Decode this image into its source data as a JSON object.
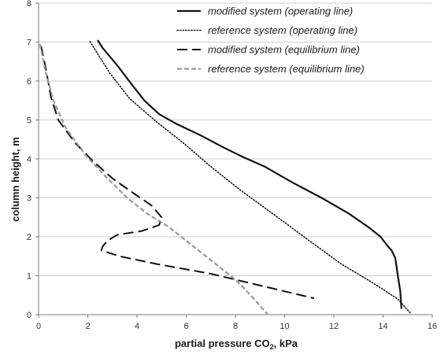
{
  "chart_data": {
    "type": "line",
    "title": "",
    "xlabel_main": "partial pressure CO",
    "xlabel_sub": "2",
    "xlabel_suffix": ", kPa",
    "ylabel": "column height, m",
    "xlim": [
      0,
      16
    ],
    "ylim": [
      0,
      8
    ],
    "xticks": [
      0,
      2,
      4,
      6,
      8,
      10,
      12,
      14,
      16
    ],
    "yticks": [
      0,
      1,
      2,
      3,
      4,
      5,
      6,
      7,
      8
    ],
    "grid": "horizontal",
    "legend_position": "top-right",
    "series": [
      {
        "name": "modified system (operating line)",
        "color": "#111111",
        "style": "solid",
        "points": [
          [
            14.75,
            0.15
          ],
          [
            14.7,
            0.6
          ],
          [
            14.6,
            1.0
          ],
          [
            14.5,
            1.45
          ],
          [
            14.35,
            1.65
          ],
          [
            14.2,
            1.75
          ],
          [
            13.9,
            2.0
          ],
          [
            13.4,
            2.25
          ],
          [
            12.6,
            2.6
          ],
          [
            11.5,
            3.0
          ],
          [
            10.3,
            3.4
          ],
          [
            9.2,
            3.8
          ],
          [
            8.3,
            4.05
          ],
          [
            7.5,
            4.3
          ],
          [
            6.6,
            4.6
          ],
          [
            5.6,
            4.9
          ],
          [
            4.9,
            5.15
          ],
          [
            4.3,
            5.5
          ],
          [
            3.8,
            5.9
          ],
          [
            3.2,
            6.4
          ],
          [
            2.6,
            6.85
          ],
          [
            2.4,
            7.05
          ]
        ]
      },
      {
        "name": "reference system (operating line)",
        "color": "#111111",
        "style": "dotted",
        "points": [
          [
            15.1,
            0.05
          ],
          [
            14.6,
            0.4
          ],
          [
            13.5,
            0.85
          ],
          [
            12.3,
            1.3
          ],
          [
            11.0,
            1.9
          ],
          [
            9.5,
            2.6
          ],
          [
            8.2,
            3.2
          ],
          [
            7.0,
            3.8
          ],
          [
            5.9,
            4.4
          ],
          [
            4.8,
            4.95
          ],
          [
            3.7,
            5.55
          ],
          [
            2.9,
            6.2
          ],
          [
            2.4,
            6.7
          ],
          [
            2.05,
            7.05
          ]
        ]
      },
      {
        "name": "modified system (equilibrium line)",
        "color": "#111111",
        "style": "dashed",
        "points": [
          [
            0.1,
            6.9
          ],
          [
            0.3,
            6.3
          ],
          [
            0.5,
            5.6
          ],
          [
            0.8,
            5.0
          ],
          [
            1.5,
            4.4
          ],
          [
            2.2,
            3.95
          ],
          [
            3.0,
            3.5
          ],
          [
            3.9,
            3.1
          ],
          [
            4.6,
            2.8
          ],
          [
            5.0,
            2.5
          ],
          [
            4.9,
            2.3
          ],
          [
            4.2,
            2.15
          ],
          [
            3.2,
            2.05
          ],
          [
            2.8,
            1.9
          ],
          [
            2.6,
            1.75
          ],
          [
            2.55,
            1.65
          ],
          [
            3.3,
            1.5
          ],
          [
            4.8,
            1.3
          ],
          [
            7.0,
            1.05
          ],
          [
            9.0,
            0.75
          ],
          [
            11.2,
            0.42
          ]
        ]
      },
      {
        "name": "reference system (equilibrium line)",
        "color": "#999999",
        "style": "dashed",
        "points": [
          [
            0.05,
            6.95
          ],
          [
            0.3,
            6.2
          ],
          [
            0.6,
            5.5
          ],
          [
            1.1,
            4.8
          ],
          [
            1.9,
            4.1
          ],
          [
            2.8,
            3.5
          ],
          [
            3.6,
            3.0
          ],
          [
            4.4,
            2.6
          ],
          [
            5.3,
            2.25
          ],
          [
            6.2,
            1.8
          ],
          [
            6.9,
            1.45
          ],
          [
            7.4,
            1.2
          ],
          [
            7.9,
            0.95
          ],
          [
            8.4,
            0.65
          ],
          [
            8.9,
            0.3
          ],
          [
            9.3,
            0.02
          ]
        ]
      }
    ]
  }
}
